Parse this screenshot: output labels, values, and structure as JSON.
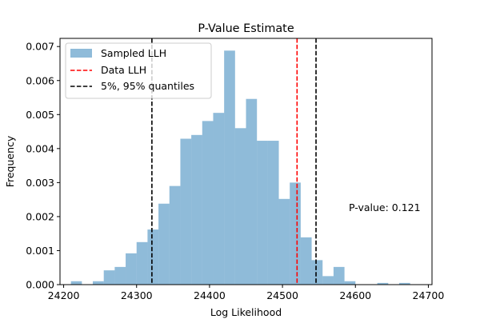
{
  "chart_data": {
    "type": "bar",
    "title": "P-Value Estimate",
    "xlabel": "Log Likelihood",
    "ylabel": "Frequency",
    "xlim": [
      24195,
      24705
    ],
    "ylim": [
      0,
      0.00724
    ],
    "x_ticks": [
      24200,
      24300,
      24400,
      24500,
      24600,
      24700
    ],
    "x_tick_labels": [
      "24200",
      "24300",
      "24400",
      "24500",
      "24600",
      "24700"
    ],
    "y_ticks": [
      0,
      0.001,
      0.002,
      0.003,
      0.004,
      0.005,
      0.006,
      0.007
    ],
    "y_tick_labels": [
      "0.000",
      "0.001",
      "0.002",
      "0.003",
      "0.004",
      "0.005",
      "0.006",
      "0.007"
    ],
    "grid": false,
    "legend_position": "upper-left",
    "histogram": {
      "name": "Sampled LLH",
      "color": "#1f77b4",
      "alpha": 0.5,
      "bin_edges": [
        24210,
        24225,
        24240,
        24255,
        24270,
        24285,
        24300,
        24315,
        24330,
        24345,
        24360,
        24375,
        24390,
        24405,
        24420,
        24435,
        24450,
        24465,
        24480,
        24495,
        24510,
        24525,
        24540,
        24555,
        24570,
        24585,
        24600,
        24615,
        24630,
        24645,
        24660,
        24675,
        24690
      ],
      "values": [
        0.0001,
        0.0,
        0.0001,
        0.00042,
        0.00052,
        0.00092,
        0.00125,
        0.00162,
        0.00238,
        0.0029,
        0.00429,
        0.0044,
        0.00481,
        0.00505,
        0.00688,
        0.0046,
        0.00546,
        0.00423,
        0.00423,
        0.00252,
        0.003,
        0.00139,
        0.00072,
        0.00025,
        0.00052,
        0.0001,
        0.0,
        0.0,
        5e-05,
        0.0,
        5e-05,
        0.0
      ]
    },
    "lines": [
      {
        "name": "Data LLH",
        "x": 24520,
        "color": "#ff0000",
        "style": "dashed"
      },
      {
        "name": "5%, 95% quantiles",
        "x": 24321,
        "color": "#000000",
        "style": "dashed"
      },
      {
        "name": "5%, 95% quantiles",
        "x": 24546,
        "color": "#000000",
        "style": "dashed"
      }
    ],
    "legend": [
      {
        "label": "Sampled LLH",
        "kind": "patch",
        "color": "#1f77b4"
      },
      {
        "label": "Data LLH",
        "kind": "line",
        "color": "#ff0000"
      },
      {
        "label": "5%, 95% quantiles",
        "kind": "line",
        "color": "#000000"
      }
    ],
    "annotation": "P-value: 0.121"
  }
}
